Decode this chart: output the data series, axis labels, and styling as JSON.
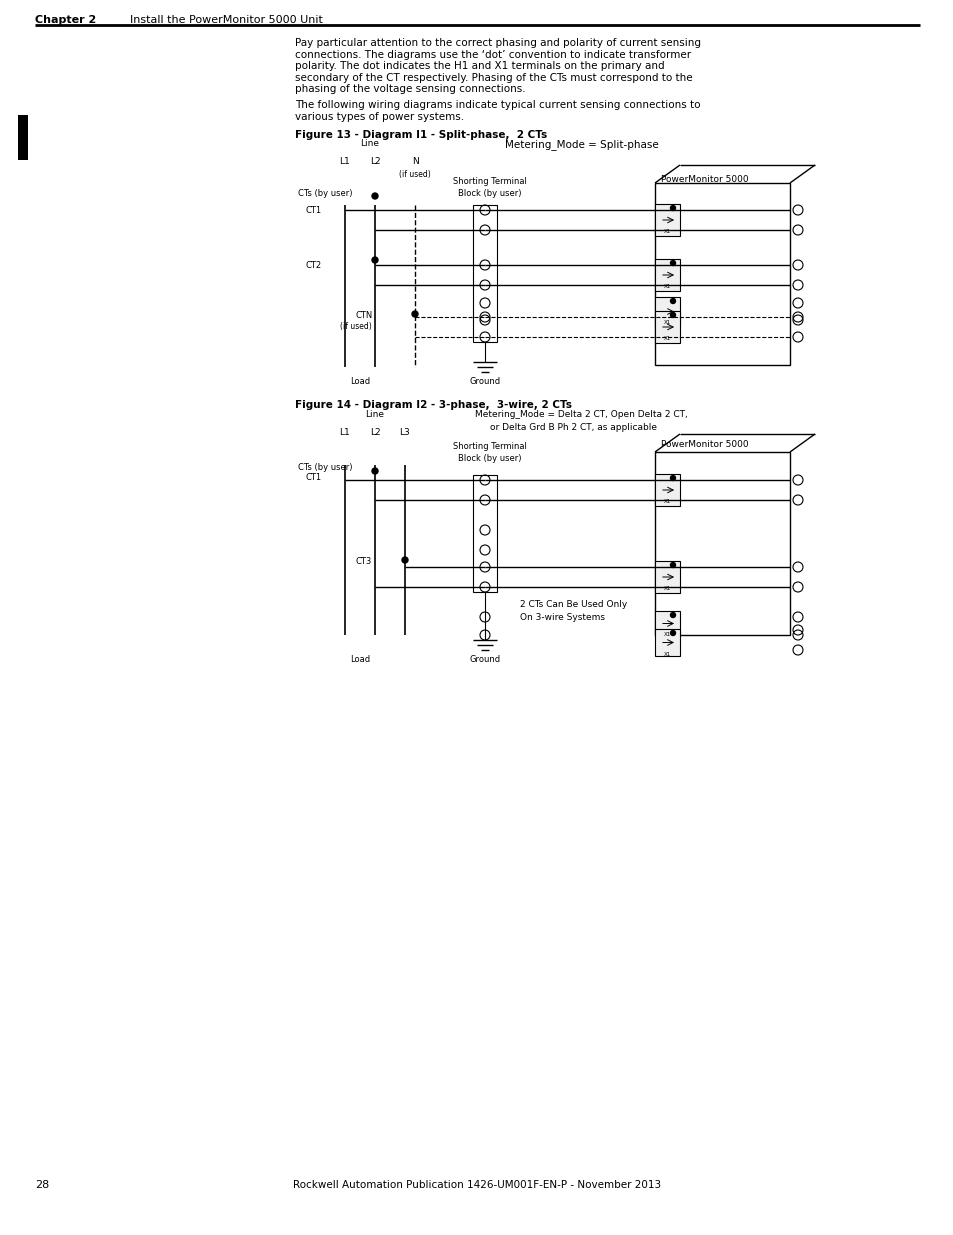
{
  "page_width": 9.54,
  "page_height": 12.35,
  "bg_color": "#ffffff",
  "header_text": "Chapter 2      Install the PowerMonitor 5000 Unit",
  "footer_text": "28                                        Rockwell Automation Publication 1426-UM001F-EN-P - November 2013",
  "body_text_1": "Pay particular attention to the correct phasing and polarity of current sensing\nconnections. The diagrams use the ‘dot’ convention to indicate transformer\npolarity. The dot indicates the H1 and X1 terminals on the primary and\nsecondary of the CT respectively. Phasing of the CTs must correspond to the\nphasing of the voltage sensing connections.",
  "body_text_2": "The following wiring diagrams indicate typical current sensing connections to\nvarious types of power systems.",
  "fig13_title": "Figure 13 - Diagram I1 - Split-phase,  2 CTs",
  "fig14_title": "Figure 14 - Diagram I2 - 3-phase,  3-wire, 2 CTs",
  "fig13_mode": "Metering_Mode = Split-phase",
  "fig14_mode": "Metering_Mode = Delta 2 CT, Open Delta 2 CT,\n      or Delta Grd B Ph 2 CT, as applicable",
  "black": "#000000",
  "gray": "#888888",
  "light_gray": "#cccccc"
}
